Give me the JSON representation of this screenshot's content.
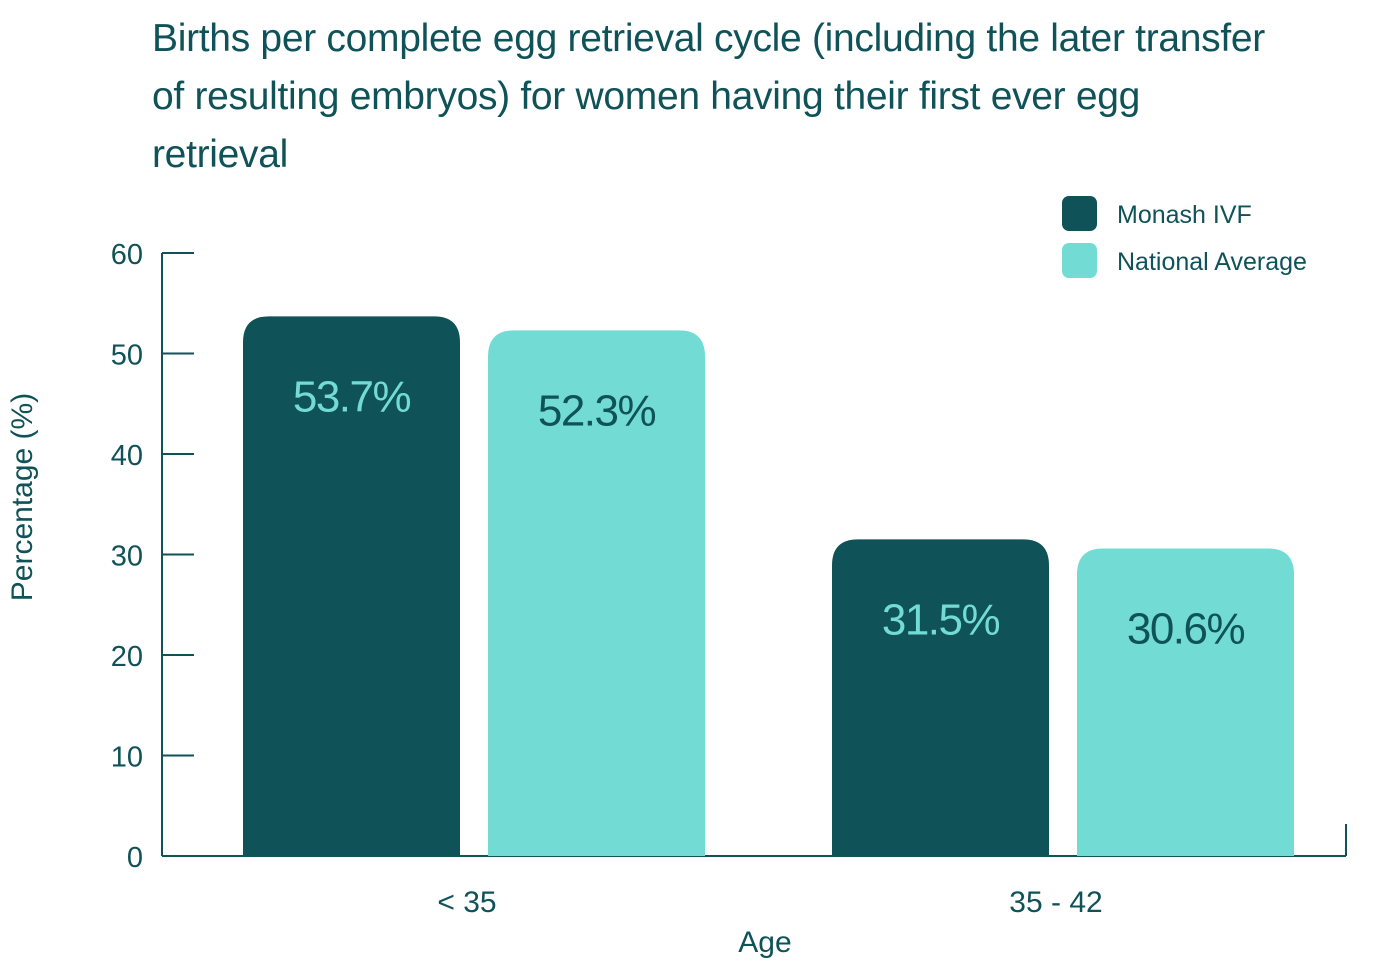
{
  "chart_data": {
    "type": "bar",
    "title": "Births per complete egg retrieval cycle (including the later transfer of resulting embryos) for women having their first ever egg retrieval",
    "xlabel": "Age",
    "ylabel": "Percentage (%)",
    "categories": [
      "< 35",
      "35 - 42"
    ],
    "series": [
      {
        "name": "Monash IVF",
        "values": [
          53.7,
          31.5
        ],
        "labels": [
          "53.7%",
          "31.5%"
        ],
        "color": "#0f5257",
        "label_color": "#72dcd4"
      },
      {
        "name": "National Average",
        "values": [
          52.3,
          30.6
        ],
        "labels": [
          "52.3%",
          "30.6%"
        ],
        "color": "#72dcd4",
        "label_color": "#0f5257"
      }
    ],
    "ylim": [
      0,
      60
    ],
    "yticks": [
      0,
      10,
      20,
      30,
      40,
      50,
      60
    ],
    "grid": false,
    "legend_position": "top-right"
  },
  "axis_color": "#0f5257"
}
